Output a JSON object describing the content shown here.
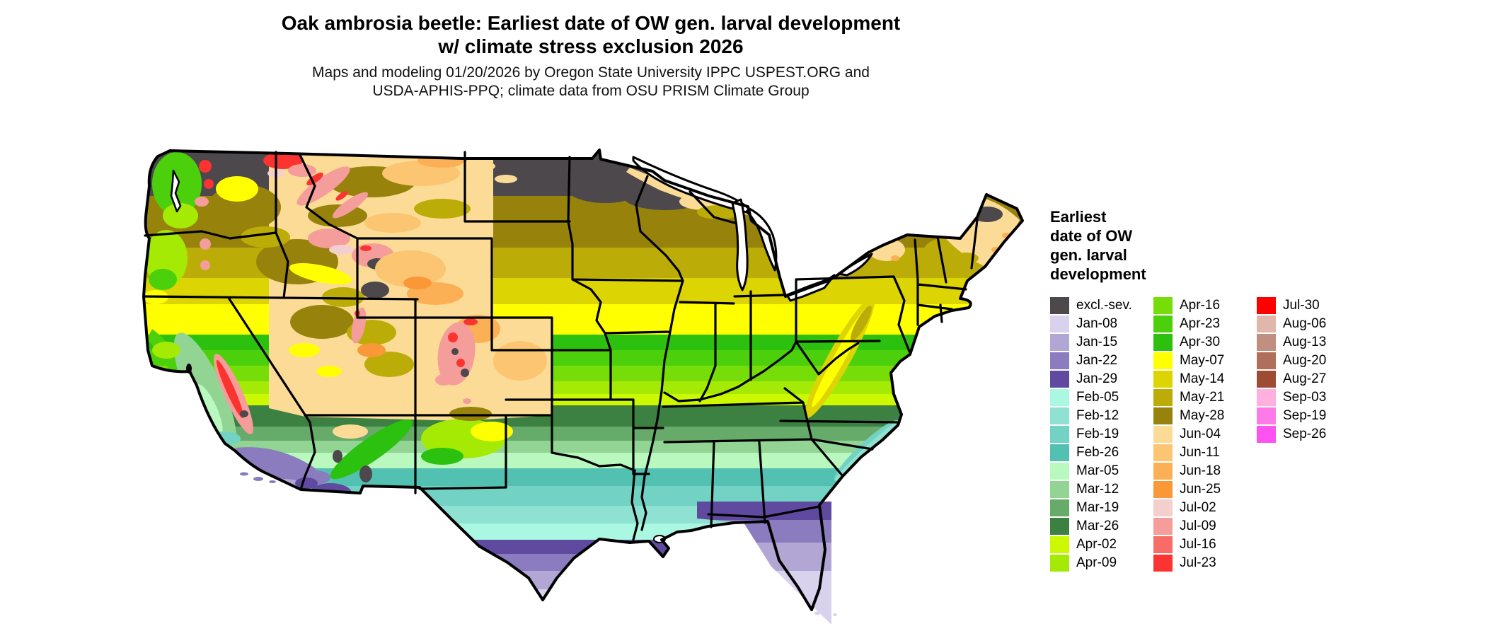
{
  "title": {
    "line1": "Oak ambrosia beetle: Earliest date of OW gen. larval development",
    "line2": "w/ climate stress exclusion 2026"
  },
  "subtitle": {
    "line1": "Maps and modeling 01/20/2026 by Oregon State University IPPC USPEST.ORG and",
    "line2": "USDA-APHIS-PPQ; climate data from OSU PRISM Climate Group"
  },
  "legend": {
    "title_lines": [
      "Earliest",
      "date of OW",
      "gen. larval",
      "development"
    ],
    "columns": [
      {
        "items": [
          {
            "label": "excl.-sev.",
            "color": "#4c484c"
          },
          {
            "label": "Jan-08",
            "color": "#d8d2ec"
          },
          {
            "label": "Jan-15",
            "color": "#b2a7d4"
          },
          {
            "label": "Jan-22",
            "color": "#8a7cbe"
          },
          {
            "label": "Jan-29",
            "color": "#5f4aa0"
          },
          {
            "label": "Feb-05",
            "color": "#aaf7e2"
          },
          {
            "label": "Feb-12",
            "color": "#8fe2d1"
          },
          {
            "label": "Feb-19",
            "color": "#72d2c3"
          },
          {
            "label": "Feb-26",
            "color": "#52c1b1"
          },
          {
            "label": "Mar-05",
            "color": "#b9f9bf"
          },
          {
            "label": "Mar-12",
            "color": "#92d494"
          },
          {
            "label": "Mar-19",
            "color": "#66ab69"
          },
          {
            "label": "Mar-26",
            "color": "#3c8142"
          },
          {
            "label": "Apr-02",
            "color": "#ccf802"
          },
          {
            "label": "Apr-09",
            "color": "#a4ea04"
          }
        ]
      },
      {
        "items": [
          {
            "label": "Apr-16",
            "color": "#77dd08"
          },
          {
            "label": "Apr-23",
            "color": "#4cd00b"
          },
          {
            "label": "Apr-30",
            "color": "#2cc10f"
          },
          {
            "label": "May-07",
            "color": "#ffff00"
          },
          {
            "label": "May-14",
            "color": "#ddd503"
          },
          {
            "label": "May-21",
            "color": "#bcac08"
          },
          {
            "label": "May-28",
            "color": "#97830b"
          },
          {
            "label": "Jun-04",
            "color": "#fcdb97"
          },
          {
            "label": "Jun-11",
            "color": "#fcc571"
          },
          {
            "label": "Jun-18",
            "color": "#fbb055"
          },
          {
            "label": "Jun-25",
            "color": "#fa9838"
          },
          {
            "label": "Jul-02",
            "color": "#f3d0cd"
          },
          {
            "label": "Jul-09",
            "color": "#f59d9a"
          },
          {
            "label": "Jul-16",
            "color": "#f76c66"
          },
          {
            "label": "Jul-23",
            "color": "#fb3431"
          }
        ]
      },
      {
        "items": [
          {
            "label": "Jul-30",
            "color": "#ff0000"
          },
          {
            "label": "Aug-06",
            "color": "#e1b7ac"
          },
          {
            "label": "Aug-13",
            "color": "#c18f80"
          },
          {
            "label": "Aug-20",
            "color": "#b06f5a"
          },
          {
            "label": "Aug-27",
            "color": "#9e4b34"
          },
          {
            "label": "Sep-03",
            "color": "#ffb0df"
          },
          {
            "label": "Sep-19",
            "color": "#ff7ae9"
          },
          {
            "label": "Sep-26",
            "color": "#fe53f1"
          }
        ]
      }
    ]
  },
  "map": {
    "area": "Continental United States",
    "boundary_color": "#000000",
    "water_color": "#ffffff",
    "gradient_south_to_north": [
      "Jan-08",
      "Jan-15",
      "Jan-22",
      "Jan-29",
      "Feb-05",
      "Feb-12",
      "Feb-19",
      "Feb-26",
      "Mar-05",
      "Mar-12",
      "Mar-19",
      "Mar-26",
      "Apr-02",
      "Apr-09",
      "Apr-16",
      "Apr-23",
      "Apr-30",
      "May-07",
      "May-14",
      "May-21",
      "May-28",
      "excl.-sev."
    ]
  }
}
